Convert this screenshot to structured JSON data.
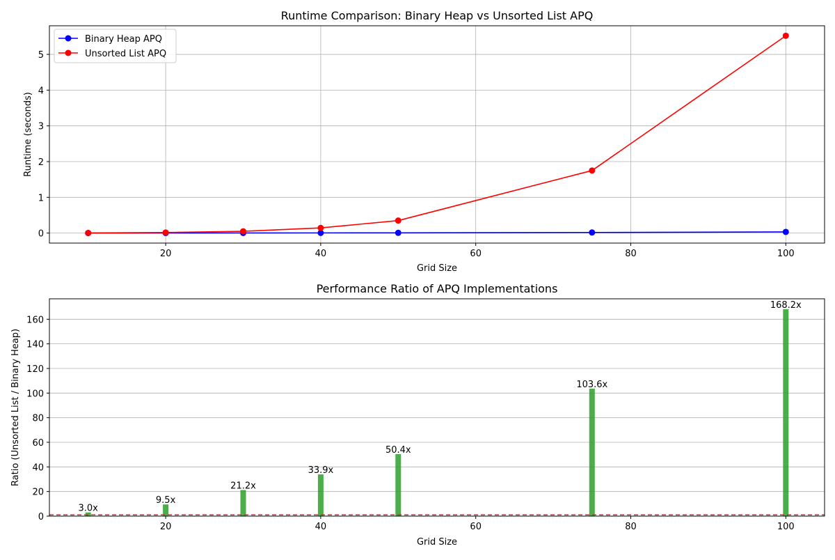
{
  "chart_data": [
    {
      "type": "line",
      "title": "Runtime Comparison: Binary Heap vs Unsorted List APQ",
      "xlabel": "Grid Size",
      "ylabel": "Runtime (seconds)",
      "xlim": [
        5,
        105
      ],
      "ylim": [
        -0.28,
        5.8
      ],
      "xticks": [
        20,
        40,
        60,
        80,
        100
      ],
      "yticks": [
        0,
        1,
        2,
        3,
        4,
        5
      ],
      "grid": true,
      "legend_position": "top-left",
      "x": [
        10,
        20,
        30,
        40,
        50,
        75,
        100
      ],
      "series": [
        {
          "name": "Binary Heap APQ",
          "color": "#0000ff",
          "marker": "circle",
          "values": [
            0.001,
            0.002,
            0.003,
            0.005,
            0.007,
            0.017,
            0.033
          ]
        },
        {
          "name": "Unsorted List APQ",
          "color": "#ff0000",
          "marker": "circle",
          "values": [
            0.003,
            0.015,
            0.05,
            0.145,
            0.35,
            1.75,
            5.52
          ]
        }
      ]
    },
    {
      "type": "bar",
      "title": "Performance Ratio of APQ Implementations",
      "xlabel": "Grid Size",
      "ylabel": "Ratio (Unsorted List / Binary Heap)",
      "xlim": [
        5,
        105
      ],
      "ylim": [
        0,
        176.6
      ],
      "xticks": [
        20,
        40,
        60,
        80,
        100
      ],
      "yticks": [
        0,
        20,
        40,
        60,
        80,
        100,
        120,
        140,
        160
      ],
      "grid": true,
      "bar_color": "#2ca02c",
      "reference_line": {
        "y": 1,
        "color": "#d62728",
        "style": "dashed"
      },
      "x": [
        10,
        20,
        30,
        40,
        50,
        75,
        100
      ],
      "values": [
        3.0,
        9.5,
        21.2,
        33.9,
        50.4,
        103.6,
        168.2
      ],
      "data_labels": [
        "3.0x",
        "9.5x",
        "21.2x",
        "33.9x",
        "50.4x",
        "103.6x",
        "168.2x"
      ]
    }
  ]
}
